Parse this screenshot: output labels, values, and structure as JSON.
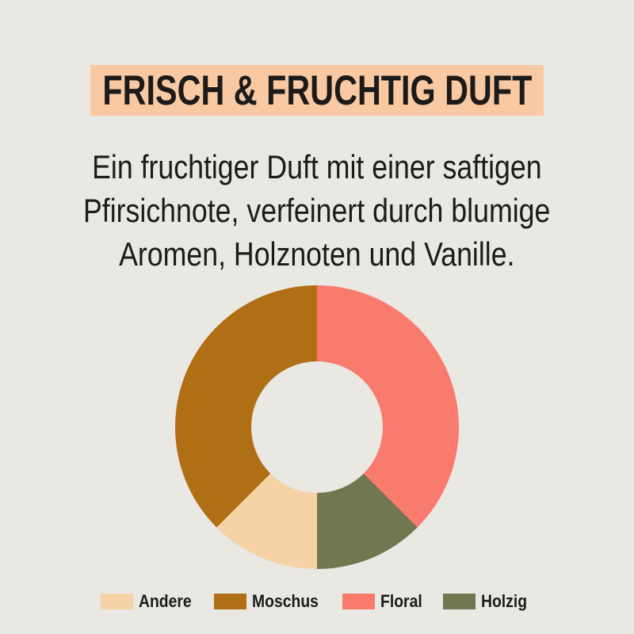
{
  "page": {
    "background": "#eae8e3",
    "text_color": "#1c1b1a"
  },
  "header": {
    "title": "FRISCH & FRUCHTIG DUFT",
    "banner_color": "#f8c9a3"
  },
  "description": {
    "lines": [
      "Ein fruchtiger Duft mit einer saftigen",
      "Pfirsichnote, verfeinert durch blumige",
      "Aromen, Holznoten und Vanille."
    ]
  },
  "chart_data": {
    "type": "pie",
    "subtype": "donut",
    "title": "",
    "direction": "clockwise",
    "start_angle_deg": 0,
    "hole_ratio": 0.464,
    "hole_color": "#eae8e3",
    "legend_position": "bottom",
    "slices_clockwise_from_top": [
      {
        "label": "Floral",
        "percent": 37.5,
        "color": "#f97b6d"
      },
      {
        "label": "Holzig",
        "percent": 12.5,
        "color": "#6f7851"
      },
      {
        "label": "Andere",
        "percent": 12.5,
        "color": "#f6d3a7"
      },
      {
        "label": "Moschus",
        "percent": 37.5,
        "color": "#b06f15"
      }
    ]
  },
  "legend": {
    "items": [
      {
        "label": "Andere",
        "color": "#f6d3a7"
      },
      {
        "label": "Moschus",
        "color": "#b06f15"
      },
      {
        "label": "Floral",
        "color": "#f97b6d"
      },
      {
        "label": "Holzig",
        "color": "#6f7851"
      }
    ]
  }
}
